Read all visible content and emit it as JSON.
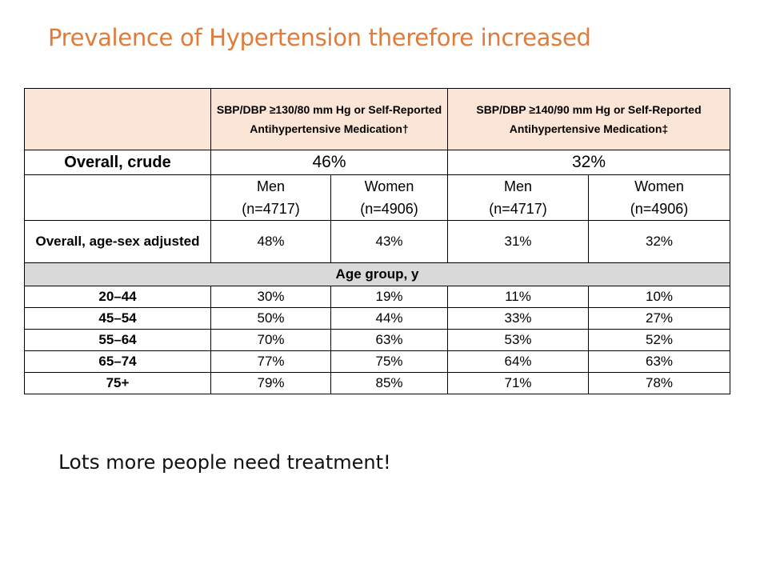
{
  "title": "Prevalence of Hypertension therefore increased",
  "table": {
    "header": {
      "blank": "",
      "col_a": "SBP/DBP ≥130/80 mm Hg or Self-Reported Antihypertensive Medication†",
      "col_b": "SBP/DBP ≥140/90 mm Hg or Self-Reported Antihypertensive Medication‡"
    },
    "crude": {
      "label": "Overall, crude",
      "a": "46%",
      "b": "32%"
    },
    "sex_header": {
      "men_label": "Men",
      "men_n": "(n=4717)",
      "women_label": "Women",
      "women_n": "(n=4906)"
    },
    "adjusted": {
      "label": "Overall, age-sex adjusted",
      "values": [
        "48%",
        "43%",
        "31%",
        "32%"
      ]
    },
    "section_label": "Age group, y",
    "age_rows": [
      {
        "label": "20–44",
        "values": [
          "30%",
          "19%",
          "11%",
          "10%"
        ]
      },
      {
        "label": "45–54",
        "values": [
          "50%",
          "44%",
          "33%",
          "27%"
        ]
      },
      {
        "label": "55–64",
        "values": [
          "70%",
          "63%",
          "53%",
          "52%"
        ]
      },
      {
        "label": "65–74",
        "values": [
          "77%",
          "75%",
          "64%",
          "63%"
        ]
      },
      {
        "label": "75+",
        "values": [
          "79%",
          "85%",
          "71%",
          "78%"
        ]
      }
    ]
  },
  "note": {
    "first_word": "Lots",
    "rest": " more people need treatment!"
  }
}
